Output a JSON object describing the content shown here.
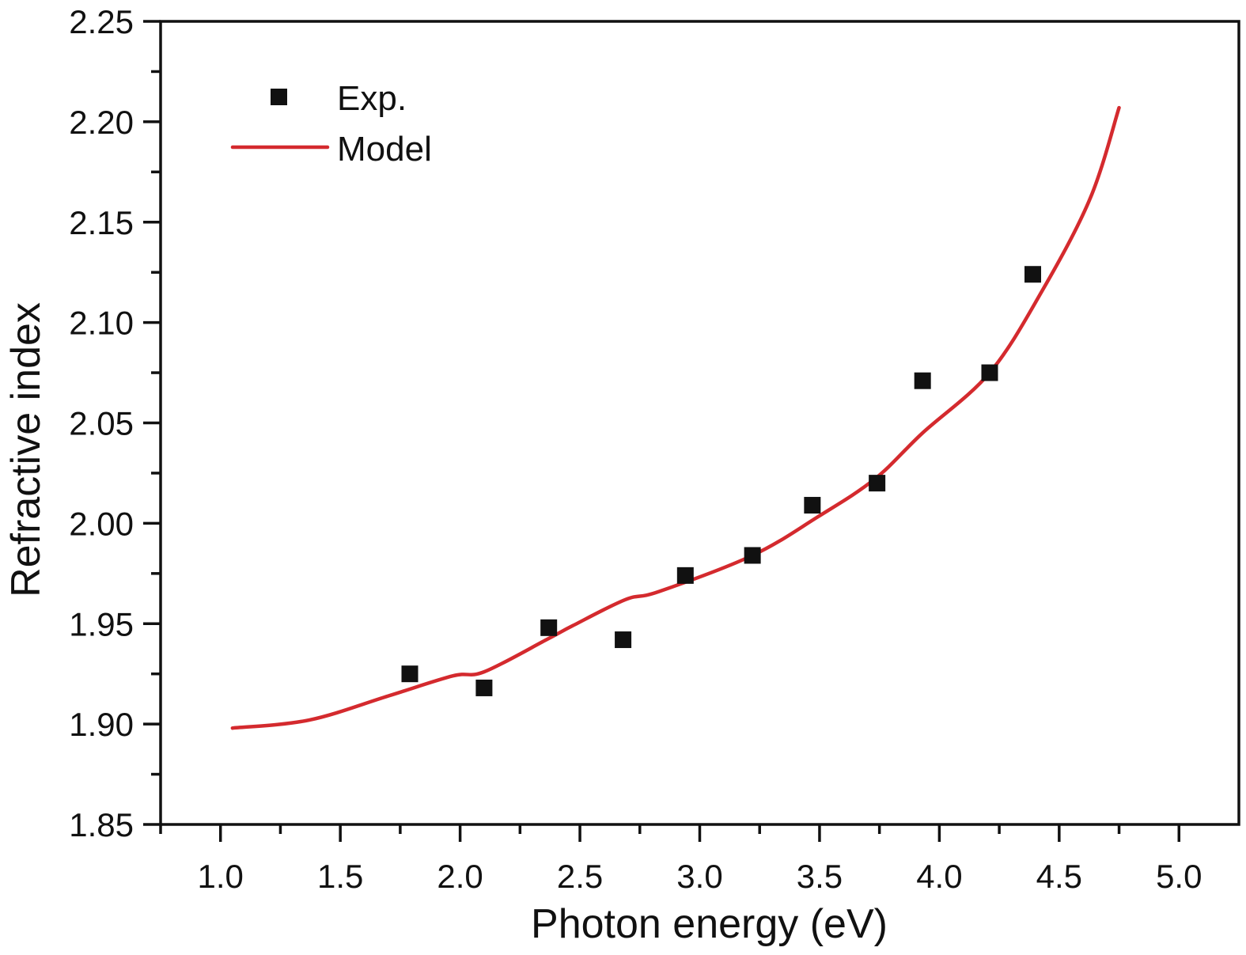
{
  "chart_data": {
    "type": "scatter",
    "title": "",
    "xlabel": "Photon energy (eV)",
    "ylabel": "Refractive index",
    "xlim": [
      0.75,
      5.25
    ],
    "ylim": [
      1.85,
      2.25
    ],
    "xticks": [
      1.0,
      1.5,
      2.0,
      2.5,
      3.0,
      3.5,
      4.0,
      4.5,
      5.0
    ],
    "xtick_labels": [
      "1.0",
      "1.5",
      "2.0",
      "2.5",
      "3.0",
      "3.5",
      "4.0",
      "4.5",
      "5.0"
    ],
    "x_minor_ticks": [
      0.75,
      1.25,
      1.75,
      2.25,
      2.75,
      3.25,
      3.75,
      4.25,
      4.75
    ],
    "yticks": [
      1.85,
      1.9,
      1.95,
      2.0,
      2.05,
      2.1,
      2.15,
      2.2,
      2.25
    ],
    "ytick_labels": [
      "1.85",
      "1.90",
      "1.95",
      "2.00",
      "2.05",
      "2.10",
      "2.15",
      "2.20",
      "2.25"
    ],
    "y_minor_ticks": [
      1.875,
      1.925,
      1.975,
      2.025,
      2.075,
      2.125,
      2.175,
      2.225
    ],
    "grid": false,
    "legend_position": "top-left",
    "series": [
      {
        "name": "Exp.",
        "kind": "scatter",
        "marker": "square",
        "color": "#111111",
        "x": [
          1.79,
          2.1,
          2.37,
          2.68,
          2.94,
          3.22,
          3.47,
          3.74,
          3.93,
          4.21,
          4.39
        ],
        "y": [
          1.925,
          1.918,
          1.948,
          1.942,
          1.974,
          1.984,
          2.009,
          2.02,
          2.071,
          2.075,
          2.124
        ]
      },
      {
        "name": "Model",
        "kind": "line",
        "color": "#d42a2e",
        "x": [
          1.05,
          1.37,
          1.7,
          1.97,
          2.1,
          2.36,
          2.47,
          2.69,
          2.83,
          3.22,
          3.49,
          3.73,
          3.93,
          4.21,
          4.43,
          4.63,
          4.75
        ],
        "y": [
          1.898,
          1.902,
          1.914,
          1.924,
          1.926,
          1.942,
          1.949,
          1.962,
          1.966,
          1.984,
          2.003,
          2.022,
          2.045,
          2.075,
          2.116,
          2.162,
          2.207
        ]
      }
    ]
  }
}
